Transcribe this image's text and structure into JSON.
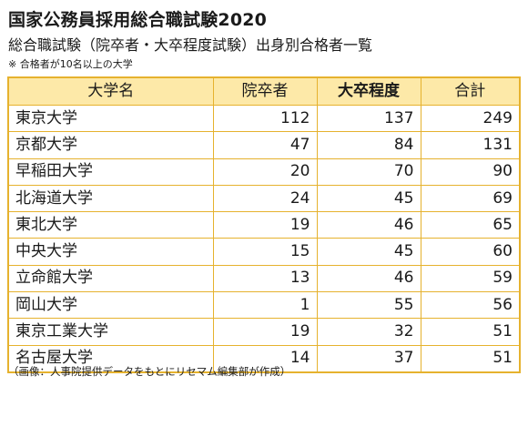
{
  "header": {
    "title": "国家公務員採用総合職試験2020",
    "subtitle": "総合職試験（院卒者・大卒程度試験）出身別合格者一覧",
    "note": "※ 合格者が10名以上の大学"
  },
  "table": {
    "columns": [
      "大学名",
      "院卒者",
      "大卒程度",
      "合計"
    ],
    "rows": [
      {
        "name": "東京大学",
        "grad": "112",
        "undergrad": "137",
        "total": "249"
      },
      {
        "name": "京都大学",
        "grad": "47",
        "undergrad": "84",
        "total": "131"
      },
      {
        "name": "早稲田大学",
        "grad": "20",
        "undergrad": "70",
        "total": "90"
      },
      {
        "name": "北海道大学",
        "grad": "24",
        "undergrad": "45",
        "total": "69"
      },
      {
        "name": "東北大学",
        "grad": "19",
        "undergrad": "46",
        "total": "65"
      },
      {
        "name": "中央大学",
        "grad": "15",
        "undergrad": "45",
        "total": "60"
      },
      {
        "name": "立命館大学",
        "grad": "13",
        "undergrad": "46",
        "total": "59"
      },
      {
        "name": "岡山大学",
        "grad": "1",
        "undergrad": "55",
        "total": "56"
      },
      {
        "name": "東京工業大学",
        "grad": "19",
        "undergrad": "32",
        "total": "51"
      },
      {
        "name": "名古屋大学",
        "grad": "14",
        "undergrad": "37",
        "total": "51"
      }
    ]
  },
  "footer": {
    "source": "（画像：人事院提供データをもとにリセマム編集部が作成）"
  },
  "colors": {
    "border": "#e6b22e",
    "header_fill": "#fde9a8"
  }
}
